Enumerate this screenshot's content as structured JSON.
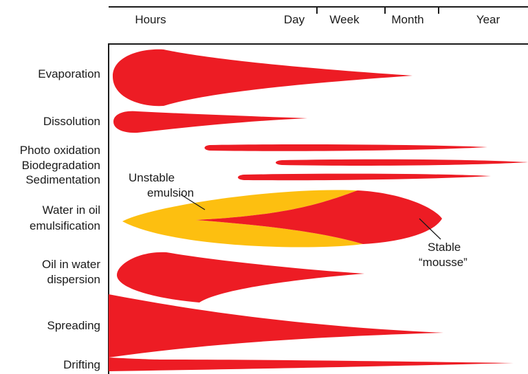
{
  "time_scale": [
    "Hours",
    "Day",
    "Week",
    "Month",
    "Year"
  ],
  "processes": [
    {
      "id": "evaporation",
      "lines": [
        "Evaporation"
      ]
    },
    {
      "id": "dissolution",
      "lines": [
        "Dissolution"
      ]
    },
    {
      "id": "photo-oxidation",
      "lines": [
        "Photo oxidation"
      ]
    },
    {
      "id": "biodegradation",
      "lines": [
        "Biodegradation"
      ]
    },
    {
      "id": "sedimentation",
      "lines": [
        "Sedimentation"
      ]
    },
    {
      "id": "water-in-oil-emulsification",
      "lines": [
        "Water in oil",
        "emulsification"
      ]
    },
    {
      "id": "oil-in-water-dispersion",
      "lines": [
        "Oil in water",
        "dispersion"
      ]
    },
    {
      "id": "spreading",
      "lines": [
        "Spreading"
      ]
    },
    {
      "id": "drifting",
      "lines": [
        "Drifting"
      ]
    }
  ],
  "annotations": {
    "unstable": [
      "Unstable",
      "emulsion"
    ],
    "stable": [
      "Stable",
      "“mousse”"
    ]
  },
  "colors": {
    "process": "#ed1c24",
    "unstable_emulsion": "#fdbf10",
    "lines": "#1a1a1a"
  }
}
